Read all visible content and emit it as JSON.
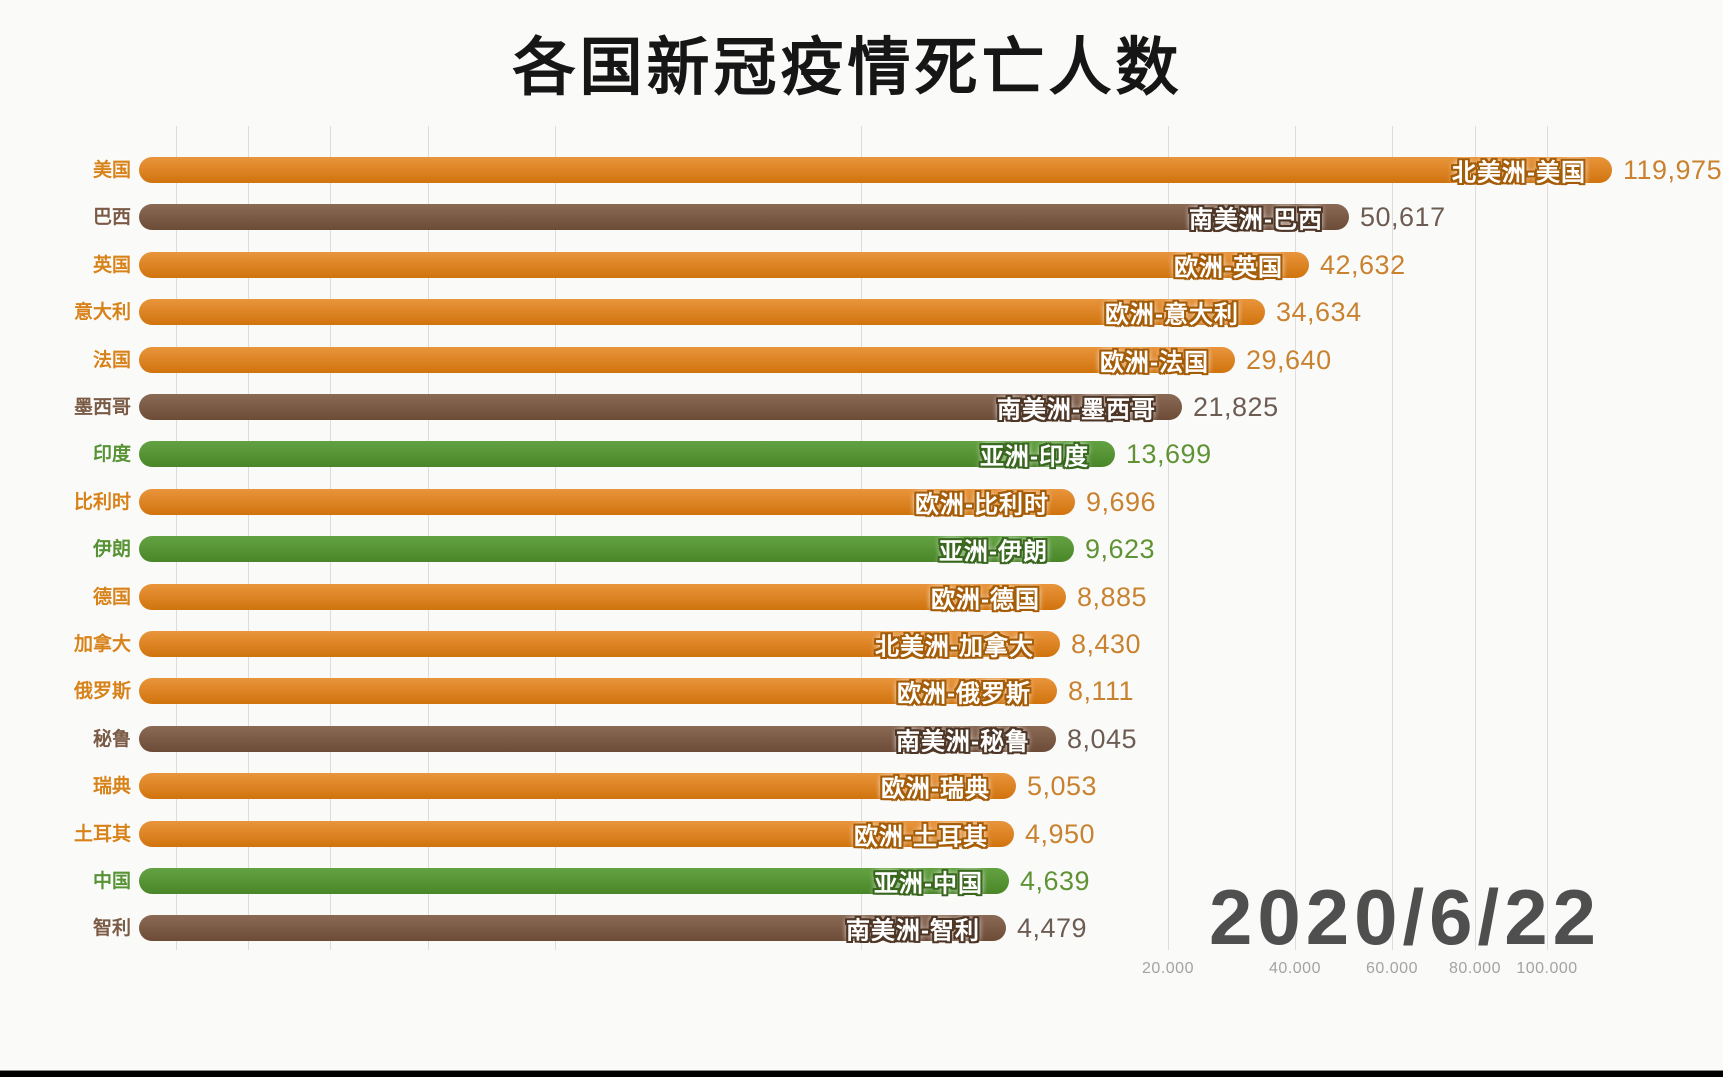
{
  "chart_data": {
    "type": "bar",
    "orientation": "horizontal",
    "title": "各国新冠疫情死亡人数",
    "date_label": "2020/6/22",
    "legend": "none",
    "grid": "on",
    "x_axis": {
      "scale": "sqrt (animated race axis, zero at gridline between 瑞典 row values)",
      "tick_label_format": "dot-thousands",
      "ticks": [
        {
          "label": "20.000",
          "value": 20000
        },
        {
          "label": "40.000",
          "value": 40000
        },
        {
          "label": "60.000",
          "value": 60000
        },
        {
          "label": "80.000",
          "value": 80000
        },
        {
          "label": "100.000",
          "value": 100000
        }
      ]
    },
    "continents": {
      "na": {
        "label": "北美洲",
        "color": "#dd7f16"
      },
      "eu": {
        "label": "欧洲",
        "color": "#dd7f16"
      },
      "as": {
        "label": "亚洲",
        "color": "#589335"
      },
      "sa": {
        "label": "南美洲",
        "color": "#7b5a46"
      }
    },
    "styles": {
      "na": {
        "bar_top": "#e9953c",
        "bar_bottom": "#d0730d",
        "stroke": "#a55c07",
        "label": "#d8821a",
        "value": "#c9822f"
      },
      "eu": {
        "bar_top": "#e9953c",
        "bar_bottom": "#d0730d",
        "stroke": "#a55c07",
        "label": "#d8821a",
        "value": "#c9822f"
      },
      "as": {
        "bar_top": "#63a242",
        "bar_bottom": "#4a8629",
        "stroke": "#38671d",
        "label": "#579334",
        "value": "#5f9334"
      },
      "sa": {
        "bar_top": "#8a6955",
        "bar_bottom": "#6c4b37",
        "stroke": "#4e3626",
        "label": "#7b5a46",
        "value": "#6d5c52"
      }
    },
    "chrome_colors": {
      "background": "#fafaf9",
      "title": "#161616",
      "gridline": "#dcdcdc",
      "tick_label": "#a3a3a3",
      "date": "#4f4f4f",
      "bottom_strip": "#000000"
    },
    "rows": [
      {
        "country": "美国",
        "continent": "na",
        "bar_label": "北美洲-美国",
        "value": 119975,
        "value_label": "119,975"
      },
      {
        "country": "巴西",
        "continent": "sa",
        "bar_label": "南美洲-巴西",
        "value": 50617,
        "value_label": "50,617"
      },
      {
        "country": "英国",
        "continent": "eu",
        "bar_label": "欧洲-英国",
        "value": 42632,
        "value_label": "42,632"
      },
      {
        "country": "意大利",
        "continent": "eu",
        "bar_label": "欧洲-意大利",
        "value": 34634,
        "value_label": "34,634"
      },
      {
        "country": "法国",
        "continent": "eu",
        "bar_label": "欧洲-法国",
        "value": 29640,
        "value_label": "29,640"
      },
      {
        "country": "墨西哥",
        "continent": "sa",
        "bar_label": "南美洲-墨西哥",
        "value": 21825,
        "value_label": "21,825"
      },
      {
        "country": "印度",
        "continent": "as",
        "bar_label": "亚洲-印度",
        "value": 13699,
        "value_label": "13,699"
      },
      {
        "country": "比利时",
        "continent": "eu",
        "bar_label": "欧洲-比利时",
        "value": 9696,
        "value_label": "9,696"
      },
      {
        "country": "伊朗",
        "continent": "as",
        "bar_label": "亚洲-伊朗",
        "value": 9623,
        "value_label": "9,623"
      },
      {
        "country": "德国",
        "continent": "eu",
        "bar_label": "欧洲-德国",
        "value": 8885,
        "value_label": "8,885"
      },
      {
        "country": "加拿大",
        "continent": "na",
        "bar_label": "北美洲-加拿大",
        "value": 8430,
        "value_label": "8,430"
      },
      {
        "country": "俄罗斯",
        "continent": "eu",
        "bar_label": "欧洲-俄罗斯",
        "value": 8111,
        "value_label": "8,111"
      },
      {
        "country": "秘鲁",
        "continent": "sa",
        "bar_label": "南美洲-秘鲁",
        "value": 8045,
        "value_label": "8,045"
      },
      {
        "country": "瑞典",
        "continent": "eu",
        "bar_label": "欧洲-瑞典",
        "value": 5053,
        "value_label": "5,053"
      },
      {
        "country": "土耳其",
        "continent": "eu",
        "bar_label": "欧洲-土耳其",
        "value": 4950,
        "value_label": "4,950"
      },
      {
        "country": "中国",
        "continent": "as",
        "bar_label": "亚洲-中国",
        "value": 4639,
        "value_label": "4,639"
      },
      {
        "country": "智利",
        "continent": "sa",
        "bar_label": "南美洲-智利",
        "value": 4479,
        "value_label": "4,479"
      }
    ]
  }
}
